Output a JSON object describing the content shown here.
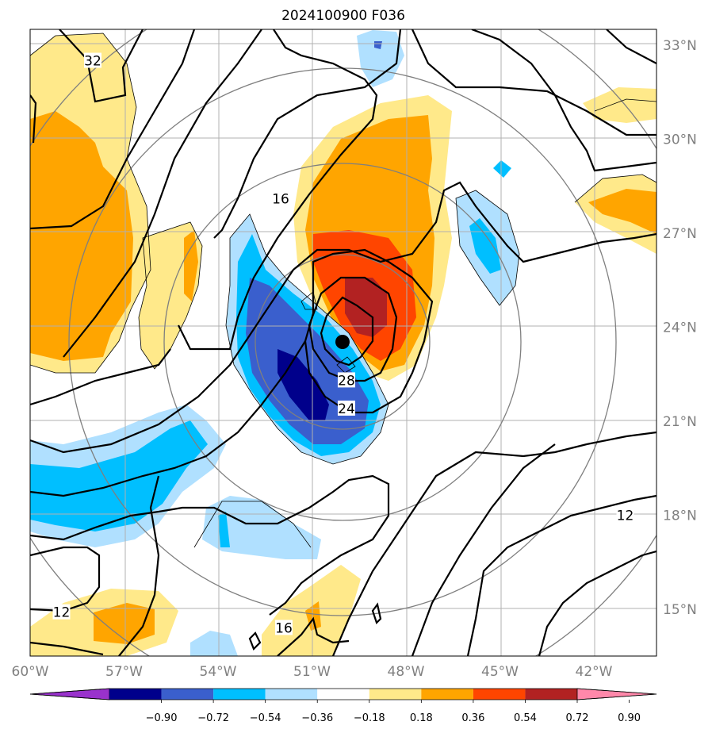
{
  "title": "2024100900 F036",
  "map": {
    "lon_labels": [
      "60°W",
      "57°W",
      "54°W",
      "51°W",
      "48°W",
      "45°W",
      "42°W"
    ],
    "lat_labels": [
      "33°N",
      "30°N",
      "27°N",
      "24°N",
      "21°N",
      "18°N",
      "15°N"
    ],
    "lon_range": [
      -60,
      -40
    ],
    "lat_range": [
      13.5,
      33.5
    ],
    "storm_center": {
      "lon": -50.0,
      "lat": 23.5
    }
  },
  "contour_labels": [
    {
      "text": "32",
      "lon": -58.0,
      "lat": 32.5
    },
    {
      "text": "16",
      "lon": -52.0,
      "lat": 28.1
    },
    {
      "text": "28",
      "lon": -49.9,
      "lat": 22.3
    },
    {
      "text": "24",
      "lon": -49.9,
      "lat": 21.4
    },
    {
      "text": "12",
      "lon": -41.0,
      "lat": 18.0
    },
    {
      "text": "12",
      "lon": -59.0,
      "lat": 14.9
    },
    {
      "text": "16",
      "lon": -51.9,
      "lat": 14.4
    }
  ],
  "colorbar": {
    "ticks": [
      "−0.90",
      "−0.72",
      "−0.54",
      "−0.36",
      "−0.18",
      "0.18",
      "0.36",
      "0.54",
      "0.72",
      "0.90"
    ],
    "colors": [
      "#9932cc",
      "#00008b",
      "#3a5fcd",
      "#00bfff",
      "#b0e0ff",
      "#ffffff",
      "#ffe98a",
      "#ffa500",
      "#ff4500",
      "#b22222",
      "#ff88aa"
    ]
  }
}
